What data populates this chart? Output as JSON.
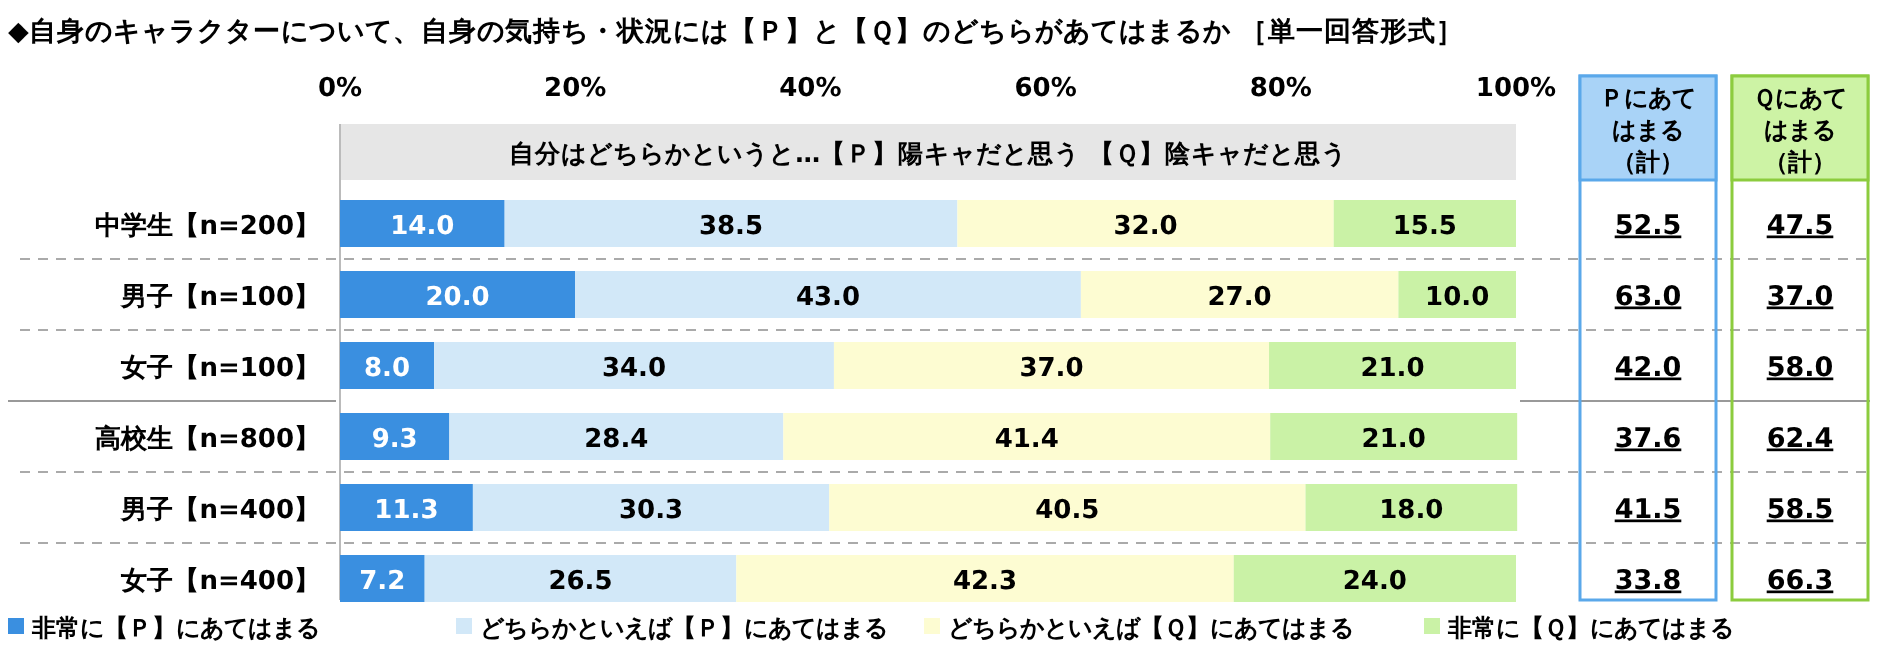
{
  "chart_data": {
    "type": "bar",
    "orientation": "horizontal",
    "stacked": true,
    "title": "◆自身のキャラクターについて、自身の気持ち・状況には【Ｐ】と【Ｑ】のどちらがあてはまるか ［単一回答形式］",
    "bands": [
      {
        "axis": "x",
        "from": 0,
        "to": 100,
        "label": "自分はどちらかというと…【Ｐ】陽キャだと思う 【Ｑ】陰キャだと思う",
        "color": "#e6e6e6"
      }
    ],
    "categories": [
      "中学生【n=200】",
      "男子【n=100】",
      "女子【n=100】",
      "高校生【n=800】",
      "男子【n=400】",
      "女子【n=400】"
    ],
    "xlim": [
      0,
      100
    ],
    "xticks": [
      {
        "value": 0,
        "label": "0%"
      },
      {
        "value": 20,
        "label": "20%"
      },
      {
        "value": 40,
        "label": "40%"
      },
      {
        "value": 60,
        "label": "60%"
      },
      {
        "value": 80,
        "label": "80%"
      },
      {
        "value": 100,
        "label": "100%"
      }
    ],
    "legend": "bottom",
    "series": [
      {
        "name": "非常に【Ｐ】にあてはまる",
        "color": "#3a8fe0",
        "values": [
          14.0,
          20.0,
          8.0,
          9.3,
          11.3,
          7.2
        ],
        "value_labels": [
          "14.0",
          "20.0",
          "8.0",
          "9.3",
          "11.3",
          "7.2"
        ]
      },
      {
        "name": "どちらかといえば【Ｐ】にあてはまる",
        "color": "#d2e8f8",
        "values": [
          38.5,
          43.0,
          34.0,
          28.4,
          30.3,
          26.5
        ],
        "value_labels": [
          "38.5",
          "43.0",
          "34.0",
          "28.4",
          "30.3",
          "26.5"
        ]
      },
      {
        "name": "どちらかといえば【Ｑ】にあてはまる",
        "color": "#fdfcd2",
        "values": [
          32.0,
          27.0,
          37.0,
          41.4,
          40.5,
          42.3
        ],
        "value_labels": [
          "32.0",
          "27.0",
          "37.0",
          "41.4",
          "40.5",
          "42.3"
        ]
      },
      {
        "name": "非常に【Ｑ】にあてはまる",
        "color": "#caf2a6",
        "values": [
          15.5,
          10.0,
          21.0,
          21.0,
          18.0,
          24.0
        ],
        "value_labels": [
          "15.5",
          "10.0",
          "21.0",
          "21.0",
          "18.0",
          "24.0"
        ]
      }
    ],
    "annotations": [
      "Ｐにあてはまる（計）",
      "52.5",
      "63.0",
      "42.0",
      "37.6",
      "41.5",
      "33.8",
      "Ｑにあてはまる（計）",
      "47.5",
      "37.0",
      "58.0",
      "62.4",
      "58.5",
      "66.3"
    ]
  }
}
